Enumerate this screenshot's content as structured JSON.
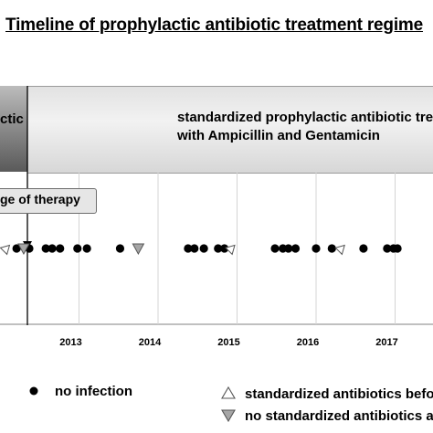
{
  "title": "Timeline of prophylactic antibiotic treatment regime",
  "periods": {
    "before_label": "ctic",
    "after_label_line1": "standardized prophylactic antibiotic tre",
    "after_label_line2": "with Ampicillin and Gentamicin"
  },
  "callout": {
    "label": "ge of therapy"
  },
  "legend": {
    "no_infection": "no infection",
    "standardized_before": "standardized antibiotics befo",
    "no_standardized": "no standardized antibiotics a"
  },
  "colors": {
    "marker": "#000000",
    "triangle_fill": "#a6a6a6",
    "band_right": "#e4e4e4",
    "band_left": "#7a7a7a"
  },
  "chart_data": {
    "type": "scatter",
    "title": "Timeline of prophylactic antibiotic treatment regime",
    "x_tick_labels": [
      "2013",
      "2014",
      "2015",
      "2016",
      "2017"
    ],
    "xlim": [
      2012.0,
      2017.5
    ],
    "change_of_therapy_year": 2012.35,
    "series": [
      {
        "name": "no infection",
        "marker": "circle",
        "x": [
          2012.21,
          2012.37,
          2012.58,
          2012.66,
          2012.76,
          2012.98,
          2013.1,
          2013.52,
          2014.38,
          2014.46,
          2014.58,
          2014.76,
          2014.84,
          2015.48,
          2015.58,
          2015.65,
          2015.74,
          2016.0,
          2016.2,
          2016.6,
          2016.9,
          2016.98,
          2017.03
        ]
      },
      {
        "name": "standardized antibiotics befo",
        "marker": "triangle-up",
        "x": [
          2012.08,
          2014.93,
          2016.32
        ]
      },
      {
        "name": "no standardized antibiotics a",
        "marker": "triangle-down",
        "x": [
          2012.3,
          2013.75
        ]
      }
    ]
  }
}
